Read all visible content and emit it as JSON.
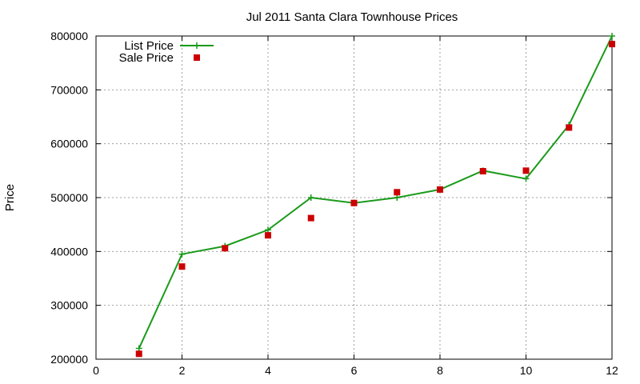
{
  "chart_data": {
    "type": "line",
    "title": "Jul 2011 Santa Clara Townhouse Prices",
    "xlabel": "",
    "ylabel": "Price",
    "xlim": [
      0,
      12
    ],
    "ylim": [
      200000,
      800000
    ],
    "x_ticks": [
      0,
      2,
      4,
      6,
      8,
      10,
      12
    ],
    "y_ticks": [
      200000,
      300000,
      400000,
      500000,
      600000,
      700000,
      800000
    ],
    "grid": true,
    "legend_position": "top-left",
    "series": [
      {
        "name": "List Price",
        "style": "line-with-plus-markers",
        "color": "#1a9a1a",
        "x": [
          1,
          2,
          3,
          4,
          5,
          6,
          7,
          8,
          9,
          10,
          11,
          12
        ],
        "values": [
          220000,
          395000,
          410000,
          440000,
          500000,
          490000,
          500000,
          515000,
          550000,
          535000,
          635000,
          800000
        ]
      },
      {
        "name": "Sale Price",
        "style": "square-markers",
        "color": "#cc0000",
        "x": [
          1,
          2,
          3,
          4,
          5,
          6,
          7,
          8,
          9,
          10,
          11,
          12
        ],
        "values": [
          210000,
          372000,
          406000,
          430000,
          462000,
          490000,
          510000,
          515000,
          549000,
          550000,
          630000,
          785000
        ]
      }
    ]
  }
}
